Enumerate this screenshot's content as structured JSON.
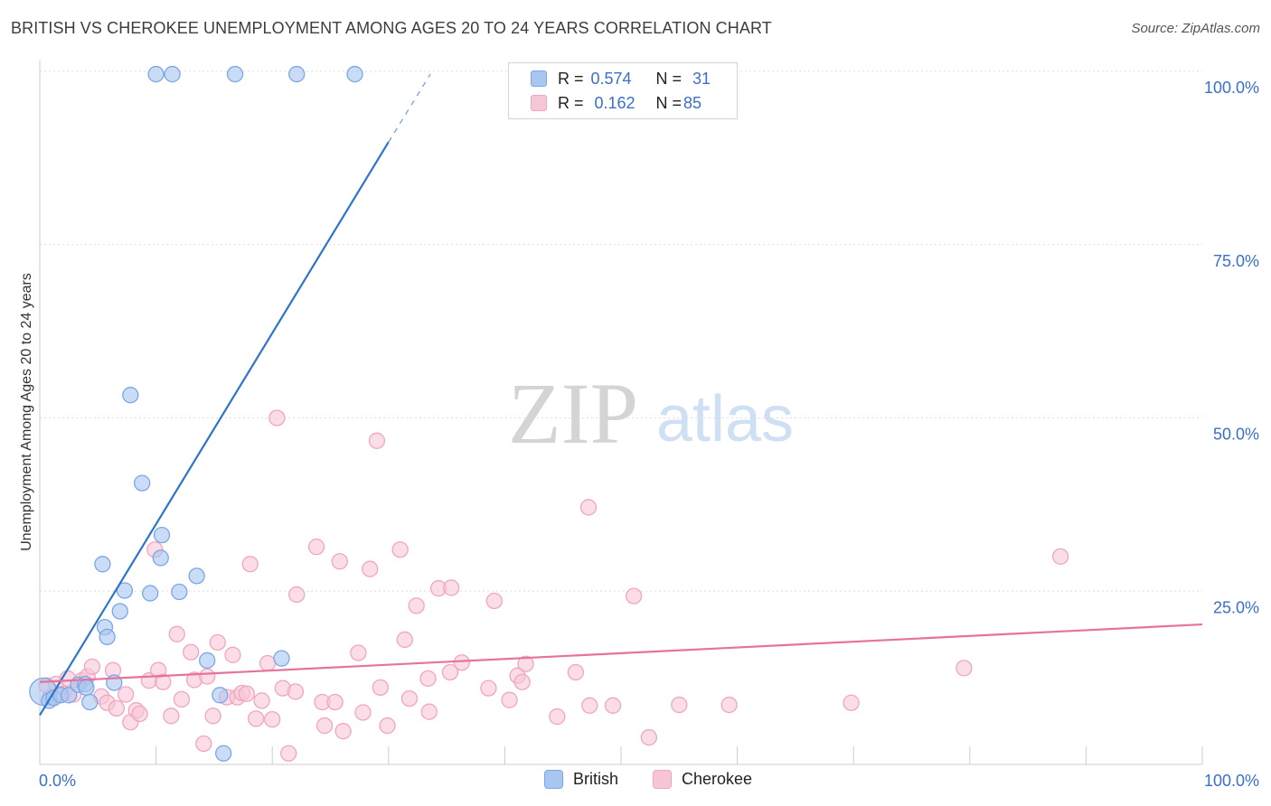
{
  "header": {
    "title": "BRITISH VS CHEROKEE UNEMPLOYMENT AMONG AGES 20 TO 24 YEARS CORRELATION CHART",
    "source": "Source: ZipAtlas.com"
  },
  "watermark": {
    "zip": "ZIP",
    "atlas": "atlas"
  },
  "colors": {
    "british": "#7aa7e6",
    "british_fill": "#a9c6f0",
    "british_line": "#2e74c9",
    "cherokee": "#f0a6bf",
    "cherokee_fill": "#f7c6d6",
    "cherokee_line": "#e5739c",
    "axis_value": "#3a6fc9",
    "grid": "#dedede"
  },
  "legend": {
    "rows": [
      {
        "series": "British",
        "r_label": "R =",
        "r_value": "0.574",
        "n_label": "N =",
        "n_value": "31"
      },
      {
        "series": "Cherokee",
        "r_label": "R =",
        "r_value": "0.162",
        "n_label": "N =",
        "n_value": "85"
      }
    ]
  },
  "bottom_legend": {
    "items": [
      "British",
      "Cherokee"
    ]
  },
  "chart_data": {
    "type": "scatter",
    "title": "BRITISH VS CHEROKEE UNEMPLOYMENT AMONG AGES 20 TO 24 YEARS CORRELATION CHART",
    "xlabel": "",
    "ylabel": "Unemployment Among Ages 20 to 24 years",
    "xlim": [
      0,
      100
    ],
    "ylim": [
      0,
      100
    ],
    "x_tick_labels": [
      {
        "value": 0,
        "label": "0.0%"
      },
      {
        "value": 100,
        "label": "100.0%"
      }
    ],
    "y_tick_labels": [
      {
        "value": 25,
        "label": "25.0%"
      },
      {
        "value": 50,
        "label": "50.0%"
      },
      {
        "value": 75,
        "label": "75.0%"
      },
      {
        "value": 100,
        "label": "100.0%"
      }
    ],
    "x_minor_ticks": [
      10,
      20,
      30,
      40,
      50,
      60,
      70,
      80,
      90,
      100
    ],
    "grid": true,
    "legend_position": "top-center",
    "series": [
      {
        "name": "British",
        "r": 0.574,
        "n": 31,
        "trend": {
          "x0": 0,
          "y0": 7.1,
          "x1": 30.0,
          "y1": 89.8,
          "dash_to_x": 33.6,
          "dash_to_y": 99.6
        },
        "points": [
          [
            0.3,
            10.5,
            "l"
          ],
          [
            0.8,
            9.2
          ],
          [
            1.2,
            9.6
          ],
          [
            1.8,
            10.0
          ],
          [
            2.5,
            10.0
          ],
          [
            3.3,
            11.5
          ],
          [
            3.9,
            11.6
          ],
          [
            4.0,
            11.1
          ],
          [
            4.3,
            9.0
          ],
          [
            5.6,
            19.8
          ],
          [
            5.4,
            28.9
          ],
          [
            5.8,
            18.4
          ],
          [
            6.4,
            11.8
          ],
          [
            6.9,
            22.1
          ],
          [
            7.3,
            25.1
          ],
          [
            7.8,
            53.3
          ],
          [
            8.8,
            40.6
          ],
          [
            9.5,
            24.7
          ],
          [
            10.4,
            29.8
          ],
          [
            10.5,
            33.1
          ],
          [
            12.0,
            24.9
          ],
          [
            13.5,
            27.2
          ],
          [
            14.4,
            15.0
          ],
          [
            15.5,
            10.0
          ],
          [
            15.8,
            1.6
          ],
          [
            20.8,
            15.3
          ],
          [
            10.0,
            99.6
          ],
          [
            11.4,
            99.6
          ],
          [
            16.8,
            99.6
          ],
          [
            22.1,
            99.6
          ],
          [
            27.1,
            99.6
          ]
        ]
      },
      {
        "name": "Cherokee",
        "r": 0.162,
        "n": 85,
        "trend": {
          "x0": 0,
          "y0": 11.9,
          "x1": 100,
          "y1": 20.2
        },
        "points": [
          [
            0.6,
            11.4
          ],
          [
            0.9,
            9.7
          ],
          [
            1.4,
            11.6
          ],
          [
            2.0,
            10.2
          ],
          [
            2.4,
            12.4
          ],
          [
            2.9,
            10.1
          ],
          [
            3.6,
            12.1
          ],
          [
            4.1,
            12.7
          ],
          [
            4.5,
            14.1
          ],
          [
            5.3,
            9.8
          ],
          [
            5.8,
            8.9
          ],
          [
            6.3,
            13.6
          ],
          [
            6.6,
            8.1
          ],
          [
            7.4,
            10.1
          ],
          [
            7.8,
            6.1
          ],
          [
            8.3,
            7.8
          ],
          [
            8.6,
            7.3
          ],
          [
            9.4,
            12.1
          ],
          [
            9.9,
            31.0
          ],
          [
            10.2,
            13.6
          ],
          [
            10.6,
            11.9
          ],
          [
            11.3,
            7.0
          ],
          [
            11.8,
            18.8
          ],
          [
            12.2,
            9.4
          ],
          [
            13.0,
            16.2
          ],
          [
            13.3,
            12.2
          ],
          [
            14.1,
            3.0
          ],
          [
            14.4,
            12.7
          ],
          [
            14.9,
            7.0
          ],
          [
            15.3,
            17.6
          ],
          [
            16.1,
            9.7
          ],
          [
            16.6,
            15.8
          ],
          [
            17.0,
            9.7
          ],
          [
            17.4,
            10.3
          ],
          [
            17.8,
            10.2
          ],
          [
            18.1,
            28.9
          ],
          [
            18.6,
            6.6
          ],
          [
            19.1,
            9.2
          ],
          [
            19.6,
            14.6
          ],
          [
            20.0,
            6.5
          ],
          [
            20.4,
            50.0
          ],
          [
            20.9,
            11.0
          ],
          [
            21.4,
            1.6
          ],
          [
            22.1,
            24.5
          ],
          [
            22.0,
            10.5
          ],
          [
            23.8,
            31.4
          ],
          [
            24.3,
            9.0
          ],
          [
            24.5,
            5.6
          ],
          [
            25.4,
            9.0
          ],
          [
            25.8,
            29.3
          ],
          [
            26.1,
            4.8
          ],
          [
            27.4,
            16.1
          ],
          [
            27.8,
            7.5
          ],
          [
            28.4,
            28.2
          ],
          [
            29.0,
            46.7
          ],
          [
            29.3,
            11.1
          ],
          [
            29.9,
            5.6
          ],
          [
            31.0,
            31.0
          ],
          [
            31.4,
            18.0
          ],
          [
            31.8,
            9.5
          ],
          [
            32.4,
            22.9
          ],
          [
            33.5,
            7.6
          ],
          [
            33.4,
            12.4
          ],
          [
            34.3,
            25.4
          ],
          [
            35.3,
            13.3
          ],
          [
            35.4,
            25.5
          ],
          [
            36.3,
            14.7
          ],
          [
            38.6,
            11.0
          ],
          [
            39.1,
            23.6
          ],
          [
            40.4,
            9.3
          ],
          [
            41.1,
            12.8
          ],
          [
            41.5,
            11.9
          ],
          [
            41.8,
            14.5
          ],
          [
            44.5,
            6.9
          ],
          [
            46.1,
            13.3
          ],
          [
            47.2,
            37.1
          ],
          [
            47.3,
            8.5
          ],
          [
            49.3,
            8.5
          ],
          [
            51.1,
            24.3
          ],
          [
            52.4,
            3.9
          ],
          [
            55.0,
            8.6
          ],
          [
            59.3,
            8.6
          ],
          [
            69.8,
            8.9
          ],
          [
            79.5,
            13.9
          ],
          [
            87.8,
            30.0
          ]
        ]
      }
    ]
  }
}
